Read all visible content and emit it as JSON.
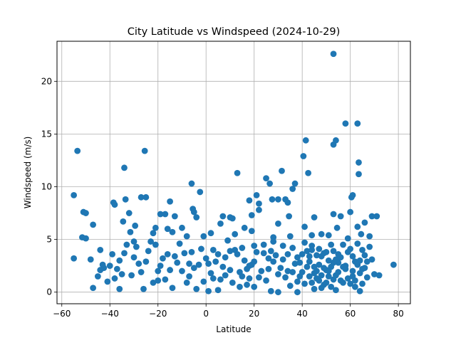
{
  "chart_data": {
    "type": "scatter",
    "title": "City Latitude vs Windspeed (2024-10-29)",
    "xlabel": "Latitude",
    "ylabel": "Windspeed (m/s)",
    "xlim": [
      -62,
      85
    ],
    "ylim": [
      -1.1,
      23.8
    ],
    "xticks": [
      -60,
      -40,
      -20,
      0,
      20,
      40,
      60,
      80
    ],
    "yticks": [
      0,
      5,
      10,
      15,
      20
    ],
    "grid": true,
    "marker_color": "#1f77b4",
    "series": [
      {
        "points": [
          [
            53.0,
            22.6
          ],
          [
            58.0,
            16.0
          ],
          [
            63.0,
            16.0
          ],
          [
            41.5,
            14.4
          ],
          [
            54.0,
            14.4
          ],
          [
            53.0,
            14.0
          ],
          [
            -53.5,
            13.4
          ],
          [
            -25.5,
            13.4
          ],
          [
            40.5,
            12.9
          ],
          [
            63.5,
            12.3
          ],
          [
            -34.0,
            11.8
          ],
          [
            13.0,
            11.3
          ],
          [
            31.5,
            11.5
          ],
          [
            42.5,
            11.3
          ],
          [
            63.5,
            11.2
          ],
          [
            25.0,
            10.8
          ],
          [
            26.5,
            10.3
          ],
          [
            -6.0,
            10.3
          ],
          [
            37.0,
            10.3
          ],
          [
            36.0,
            9.8
          ],
          [
            -2.5,
            9.5
          ],
          [
            -55.0,
            9.2
          ],
          [
            21.0,
            9.2
          ],
          [
            -27.0,
            9.0
          ],
          [
            -25.0,
            9.0
          ],
          [
            61.0,
            9.2
          ],
          [
            60.5,
            9.0
          ],
          [
            27.5,
            8.8
          ],
          [
            30.0,
            8.8
          ],
          [
            -33.5,
            8.8
          ],
          [
            -38.5,
            8.5
          ],
          [
            -38.0,
            8.3
          ],
          [
            -15.0,
            8.6
          ],
          [
            18.0,
            8.7
          ],
          [
            34.0,
            8.5
          ],
          [
            22.0,
            8.4
          ],
          [
            33.0,
            8.8
          ],
          [
            -5.5,
            7.9
          ],
          [
            -5.0,
            7.6
          ],
          [
            -51.0,
            7.6
          ],
          [
            -50.0,
            7.5
          ],
          [
            -32.0,
            7.5
          ],
          [
            -19.0,
            7.4
          ],
          [
            -17.0,
            7.4
          ],
          [
            -13.0,
            7.2
          ],
          [
            -4.0,
            7.1
          ],
          [
            7.0,
            7.2
          ],
          [
            10.0,
            7.1
          ],
          [
            11.0,
            7.0
          ],
          [
            19.0,
            7.3
          ],
          [
            22.0,
            7.8
          ],
          [
            34.5,
            7.2
          ],
          [
            45.0,
            7.1
          ],
          [
            53.0,
            7.4
          ],
          [
            56.0,
            7.2
          ],
          [
            60.0,
            7.6
          ],
          [
            69.0,
            7.2
          ],
          [
            71.0,
            7.2
          ],
          [
            -47.0,
            6.4
          ],
          [
            -34.5,
            6.7
          ],
          [
            -29.5,
            6.3
          ],
          [
            -21.0,
            6.1
          ],
          [
            -16.0,
            6.0
          ],
          [
            -10.0,
            6.1
          ],
          [
            6.0,
            6.5
          ],
          [
            16.0,
            6.1
          ],
          [
            30.0,
            6.5
          ],
          [
            41.0,
            6.2
          ],
          [
            54.5,
            6.1
          ],
          [
            63.0,
            6.2
          ],
          [
            66.0,
            6.6
          ],
          [
            -51.5,
            5.2
          ],
          [
            -31.5,
            5.7
          ],
          [
            -22.0,
            5.6
          ],
          [
            -14.0,
            5.7
          ],
          [
            -8.0,
            5.3
          ],
          [
            -1.0,
            5.3
          ],
          [
            2.0,
            5.6
          ],
          [
            12.0,
            5.5
          ],
          [
            19.0,
            5.8
          ],
          [
            28.0,
            5.2
          ],
          [
            35.0,
            5.3
          ],
          [
            44.0,
            5.4
          ],
          [
            48.0,
            5.5
          ],
          [
            51.0,
            5.4
          ],
          [
            59.0,
            5.1
          ],
          [
            64.5,
            5.5
          ],
          [
            68.0,
            5.3
          ],
          [
            -39.0,
            3.6
          ],
          [
            -44.0,
            4.0
          ],
          [
            -42.5,
            2.3
          ],
          [
            -43.0,
            2.6
          ],
          [
            -35.0,
            1.7
          ],
          [
            -36.0,
            0.3
          ],
          [
            -26.0,
            0.3
          ],
          [
            -22.0,
            0.9
          ],
          [
            -14.0,
            0.4
          ],
          [
            -4.0,
            0.3
          ],
          [
            1.0,
            0.1
          ],
          [
            5.0,
            0.2
          ],
          [
            14.0,
            0.5
          ],
          [
            27.0,
            0.1
          ],
          [
            30.0,
            0.0
          ],
          [
            38.0,
            0.0
          ],
          [
            45.0,
            0.3
          ],
          [
            54.0,
            0.2
          ],
          [
            64.0,
            0.1
          ],
          [
            -47.0,
            0.4
          ],
          [
            -40.0,
            2.5
          ],
          [
            -30.0,
            3.3
          ],
          [
            -28.0,
            2.7
          ],
          [
            -24.0,
            3.9
          ],
          [
            -20.0,
            2.0
          ],
          [
            -18.0,
            3.2
          ],
          [
            -12.0,
            2.8
          ],
          [
            -9.0,
            3.7
          ],
          [
            -7.0,
            1.5
          ],
          [
            -3.0,
            2.6
          ],
          [
            0.0,
            3.2
          ],
          [
            3.0,
            4.0
          ],
          [
            6.0,
            1.2
          ],
          [
            8.0,
            3.3
          ],
          [
            10.0,
            2.1
          ],
          [
            12.0,
            4.0
          ],
          [
            14.0,
            1.9
          ],
          [
            16.0,
            3.0
          ],
          [
            18.0,
            2.5
          ],
          [
            20.0,
            4.4
          ],
          [
            22.0,
            1.4
          ],
          [
            24.0,
            3.7
          ],
          [
            26.0,
            2.2
          ],
          [
            28.0,
            4.8
          ],
          [
            30.0,
            1.7
          ],
          [
            32.0,
            3.1
          ],
          [
            34.0,
            2.0
          ],
          [
            36.0,
            4.2
          ],
          [
            38.0,
            1.0
          ],
          [
            40.0,
            3.6
          ],
          [
            42.0,
            2.4
          ],
          [
            44.0,
            4.0
          ],
          [
            46.0,
            1.3
          ],
          [
            48.0,
            3.4
          ],
          [
            50.0,
            2.1
          ],
          [
            52.0,
            4.5
          ],
          [
            54.0,
            1.6
          ],
          [
            56.0,
            3.3
          ],
          [
            58.0,
            2.5
          ],
          [
            60.0,
            4.1
          ],
          [
            62.0,
            1.1
          ],
          [
            64.0,
            3.0
          ],
          [
            66.0,
            2.3
          ],
          [
            68.0,
            4.3
          ],
          [
            70.0,
            1.7
          ],
          [
            -45.0,
            1.5
          ],
          [
            -37.0,
            2.2
          ],
          [
            -33.0,
            4.5
          ],
          [
            -27.0,
            1.9
          ],
          [
            -23.0,
            4.8
          ],
          [
            -17.0,
            1.2
          ],
          [
            -11.0,
            4.6
          ],
          [
            -5.0,
            2.3
          ],
          [
            -1.0,
            1.0
          ],
          [
            4.0,
            2.9
          ],
          [
            9.0,
            4.9
          ],
          [
            15.0,
            1.5
          ],
          [
            21.0,
            3.8
          ],
          [
            25.0,
            1.1
          ],
          [
            29.0,
            3.5
          ],
          [
            33.0,
            1.4
          ],
          [
            37.0,
            2.7
          ],
          [
            41.0,
            0.8
          ],
          [
            43.0,
            2.9
          ],
          [
            45.0,
            1.8
          ],
          [
            47.0,
            2.6
          ],
          [
            49.0,
            0.7
          ],
          [
            51.0,
            3.0
          ],
          [
            53.0,
            1.2
          ],
          [
            55.0,
            2.8
          ],
          [
            57.0,
            0.9
          ],
          [
            59.0,
            3.8
          ],
          [
            61.0,
            2.0
          ],
          [
            63.0,
            4.6
          ],
          [
            65.0,
            0.8
          ],
          [
            67.0,
            2.9
          ],
          [
            72.0,
            1.6
          ],
          [
            78.0,
            2.6
          ],
          [
            -55.0,
            3.2
          ],
          [
            -50.0,
            5.1
          ],
          [
            -48.0,
            3.1
          ],
          [
            -41.0,
            1.0
          ],
          [
            -31.0,
            1.6
          ],
          [
            -25.0,
            2.9
          ],
          [
            -21.0,
            4.5
          ],
          [
            -15.0,
            2.1
          ],
          [
            -13.0,
            3.4
          ],
          [
            -8.0,
            0.9
          ],
          [
            -2.0,
            4.1
          ],
          [
            2.0,
            1.8
          ],
          [
            7.0,
            2.4
          ],
          [
            11.0,
            0.9
          ],
          [
            13.0,
            3.6
          ],
          [
            17.0,
            0.7
          ],
          [
            19.0,
            2.6
          ],
          [
            23.0,
            2.0
          ],
          [
            27.0,
            3.9
          ],
          [
            31.0,
            2.3
          ],
          [
            35.0,
            0.6
          ],
          [
            39.0,
            2.8
          ],
          [
            41.0,
            4.7
          ],
          [
            43.0,
            1.5
          ],
          [
            47.0,
            4.1
          ],
          [
            49.0,
            2.3
          ],
          [
            51.0,
            1.5
          ],
          [
            53.0,
            3.9
          ],
          [
            55.0,
            1.9
          ],
          [
            57.0,
            4.5
          ],
          [
            59.0,
            1.3
          ],
          [
            61.0,
            3.4
          ],
          [
            63.0,
            2.6
          ],
          [
            65.0,
            4.0
          ],
          [
            67.0,
            1.4
          ],
          [
            69.0,
            3.1
          ],
          [
            -44.0,
            2.1
          ],
          [
            -34.0,
            3.7
          ],
          [
            -29.0,
            4.3
          ],
          [
            -19.0,
            2.5
          ],
          [
            -10.0,
            2.0
          ],
          [
            -6.0,
            3.8
          ],
          [
            1.0,
            2.7
          ],
          [
            5.0,
            3.6
          ],
          [
            8.0,
            1.6
          ],
          [
            15.0,
            4.2
          ],
          [
            17.0,
            2.2
          ],
          [
            24.0,
            4.5
          ],
          [
            26.0,
            3.2
          ],
          [
            32.0,
            4.4
          ],
          [
            36.0,
            1.9
          ],
          [
            38.0,
            3.3
          ],
          [
            40.0,
            1.9
          ],
          [
            42.0,
            3.9
          ],
          [
            44.0,
            0.9
          ],
          [
            46.0,
            3.5
          ],
          [
            48.0,
            1.6
          ],
          [
            50.0,
            3.8
          ],
          [
            52.0,
            2.4
          ],
          [
            54.0,
            3.1
          ],
          [
            56.0,
            1.1
          ],
          [
            58.0,
            2.2
          ],
          [
            60.0,
            0.8
          ],
          [
            62.0,
            2.9
          ],
          [
            64.0,
            1.8
          ],
          [
            66.0,
            3.5
          ],
          [
            -38.0,
            1.3
          ],
          [
            -20.0,
            1.1
          ],
          [
            -16.0,
            3.6
          ],
          [
            -7.0,
            2.7
          ],
          [
            3.0,
            1.3
          ],
          [
            10.0,
            3.9
          ],
          [
            18.0,
            1.3
          ],
          [
            20.0,
            2.9
          ],
          [
            28.0,
            2.9
          ],
          [
            34.0,
            3.6
          ],
          [
            39.0,
            1.5
          ],
          [
            43.0,
            3.4
          ],
          [
            45.0,
            2.4
          ],
          [
            47.0,
            1.1
          ],
          [
            49.0,
            3.7
          ],
          [
            51.0,
            2.0
          ],
          [
            53.0,
            2.8
          ],
          [
            55.0,
            3.6
          ],
          [
            57.0,
            2.4
          ],
          [
            61.0,
            1.5
          ],
          [
            65.0,
            2.2
          ],
          [
            62.0,
            0.5
          ],
          [
            44.0,
            4.4
          ],
          [
            46.0,
            2.0
          ],
          [
            48.0,
            0.4
          ],
          [
            50.0,
            0.9
          ],
          [
            52.0,
            0.5
          ],
          [
            20.0,
            0.5
          ],
          [
            -30.0,
            4.8
          ],
          [
            -36.0,
            3.0
          ]
        ]
      }
    ]
  }
}
